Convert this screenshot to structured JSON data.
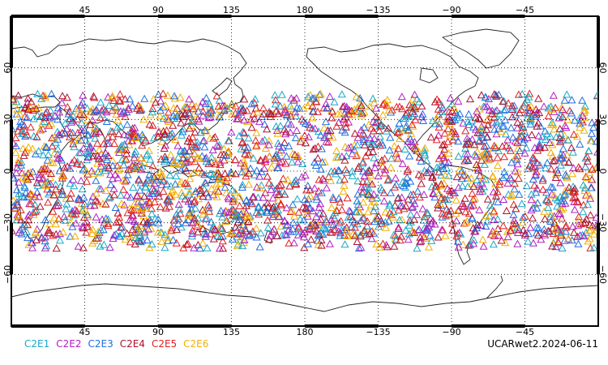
{
  "chart_data": {
    "type": "scatter",
    "projection": "equirectangular, centered on 180",
    "xlim": [
      0,
      360
    ],
    "ylim": [
      -90,
      90
    ],
    "grid": true,
    "top_ticks": [
      "45",
      "90",
      "135",
      "180",
      "−135",
      "−90",
      "−45"
    ],
    "bottom_ticks": [
      "45",
      "90",
      "135",
      "180",
      "−135",
      "−90",
      "−45"
    ],
    "left_ticks": [
      "60",
      "30",
      "0",
      "−30",
      "−60"
    ],
    "right_ticks": [
      "60",
      "30",
      "0",
      "−30",
      "−60"
    ],
    "tick_lons": [
      45,
      90,
      135,
      180,
      225,
      270,
      315
    ],
    "tick_lats": [
      60,
      30,
      0,
      -30,
      -60
    ],
    "marker": "triangle-open",
    "occultation_band_lat": [
      -45,
      45
    ],
    "series": [
      {
        "name": "C2E1",
        "color": "#19a8c8"
      },
      {
        "name": "C2E2",
        "color": "#b020c0"
      },
      {
        "name": "C2E3",
        "color": "#1e6ee0"
      },
      {
        "name": "C2E4",
        "color": "#b0102c"
      },
      {
        "name": "C2E5",
        "color": "#e02020"
      },
      {
        "name": "C2E6",
        "color": "#f2b000"
      }
    ]
  },
  "legend": {
    "items": [
      {
        "label": "C2E1",
        "color": "#19a8c8"
      },
      {
        "label": "C2E2",
        "color": "#b020c0"
      },
      {
        "label": "C2E3",
        "color": "#1e6ee0"
      },
      {
        "label": "C2E4",
        "color": "#b0102c"
      },
      {
        "label": "C2E5",
        "color": "#e02020"
      },
      {
        "label": "C2E6",
        "color": "#f2b000"
      }
    ]
  },
  "source_label": "UCARwet2.2024-06-11"
}
